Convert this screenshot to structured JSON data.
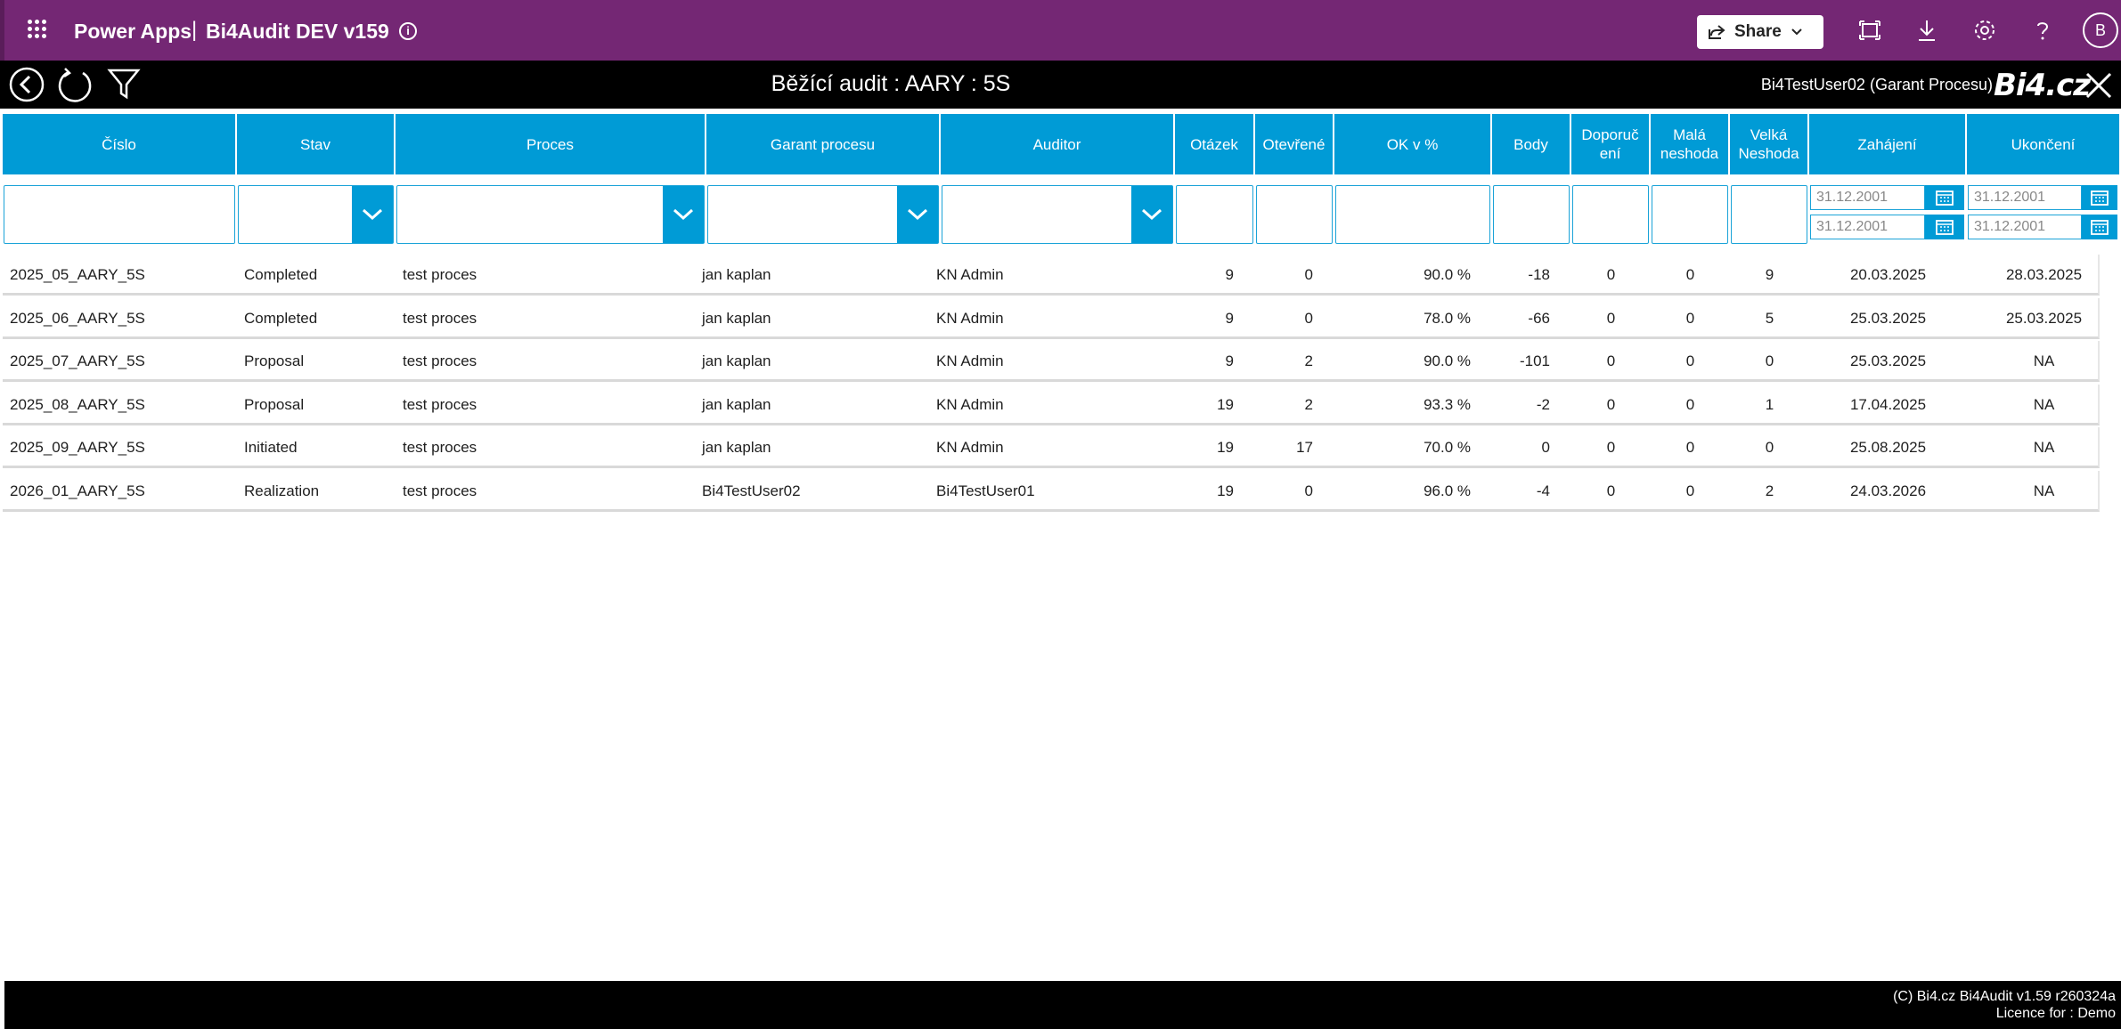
{
  "powerapps": {
    "product": "Power Apps",
    "separator": "|",
    "app_name": "Bi4Audit DEV v159",
    "share_label": "Share",
    "avatar_initial": "B"
  },
  "header": {
    "title": "Běžící audit : AARY : 5S",
    "user": "Bi4TestUser02 (Garant Procesu)",
    "logo": "Bi4.cz"
  },
  "columns": [
    {
      "key": "cislo",
      "label": "Číslo"
    },
    {
      "key": "stav",
      "label": "Stav"
    },
    {
      "key": "proces",
      "label": "Proces"
    },
    {
      "key": "garant",
      "label": "Garant procesu"
    },
    {
      "key": "auditor",
      "label": "Auditor"
    },
    {
      "key": "otazek",
      "label": "Otázek"
    },
    {
      "key": "otevrene",
      "label": "Otevřené"
    },
    {
      "key": "ok",
      "label": "OK v %"
    },
    {
      "key": "body",
      "label": "Body"
    },
    {
      "key": "doporuceni",
      "label": "Doporuč ení"
    },
    {
      "key": "mala",
      "label": "Malá neshoda"
    },
    {
      "key": "velka",
      "label": "Velká Neshoda"
    },
    {
      "key": "zahajeni",
      "label": "Zahájení"
    },
    {
      "key": "ukonceni",
      "label": "Ukončení"
    }
  ],
  "filters": {
    "zahajeni_from": "31.12.2001",
    "zahajeni_to": "31.12.2001",
    "ukonceni_from": "31.12.2001",
    "ukonceni_to": "31.12.2001"
  },
  "rows": [
    {
      "cislo": "2025_05_AARY_5S",
      "stav": "Completed",
      "proces": "test proces",
      "garant": "jan kaplan",
      "auditor": "KN Admin",
      "otazek": "9",
      "otevrene": "0",
      "ok": "90.0 %",
      "body": "-18",
      "doporuceni": "0",
      "mala": "0",
      "velka": "9",
      "zahajeni": "20.03.2025",
      "ukonceni": "28.03.2025"
    },
    {
      "cislo": "2025_06_AARY_5S",
      "stav": "Completed",
      "proces": "test proces",
      "garant": "jan kaplan",
      "auditor": "KN Admin",
      "otazek": "9",
      "otevrene": "0",
      "ok": "78.0 %",
      "body": "-66",
      "doporuceni": "0",
      "mala": "0",
      "velka": "5",
      "zahajeni": "25.03.2025",
      "ukonceni": "25.03.2025"
    },
    {
      "cislo": "2025_07_AARY_5S",
      "stav": "Proposal",
      "proces": "test proces",
      "garant": "jan kaplan",
      "auditor": "KN Admin",
      "otazek": "9",
      "otevrene": "2",
      "ok": "90.0 %",
      "body": "-101",
      "doporuceni": "0",
      "mala": "0",
      "velka": "0",
      "zahajeni": "25.03.2025",
      "ukonceni": "NA"
    },
    {
      "cislo": "2025_08_AARY_5S",
      "stav": "Proposal",
      "proces": "test proces",
      "garant": "jan kaplan",
      "auditor": "KN Admin",
      "otazek": "19",
      "otevrene": "2",
      "ok": "93.3 %",
      "body": "-2",
      "doporuceni": "0",
      "mala": "0",
      "velka": "1",
      "zahajeni": "17.04.2025",
      "ukonceni": "NA"
    },
    {
      "cislo": "2025_09_AARY_5S",
      "stav": "Initiated",
      "proces": "test proces",
      "garant": "jan kaplan",
      "auditor": "KN Admin",
      "otazek": "19",
      "otevrene": "17",
      "ok": "70.0 %",
      "body": "0",
      "doporuceni": "0",
      "mala": "0",
      "velka": "0",
      "zahajeni": "25.08.2025",
      "ukonceni": "NA"
    },
    {
      "cislo": "2026_01_AARY_5S",
      "stav": "Realization",
      "proces": "test proces",
      "garant": "Bi4TestUser02",
      "auditor": "Bi4TestUser01",
      "otazek": "19",
      "otevrene": "0",
      "ok": "96.0 %",
      "body": "-4",
      "doporuceni": "0",
      "mala": "0",
      "velka": "2",
      "zahajeni": "24.03.2026",
      "ukonceni": "NA"
    }
  ],
  "footer": {
    "copyright": "(C) Bi4.cz Bi4Audit v1.59 r260324a",
    "licence": "Licence for : Demo"
  }
}
